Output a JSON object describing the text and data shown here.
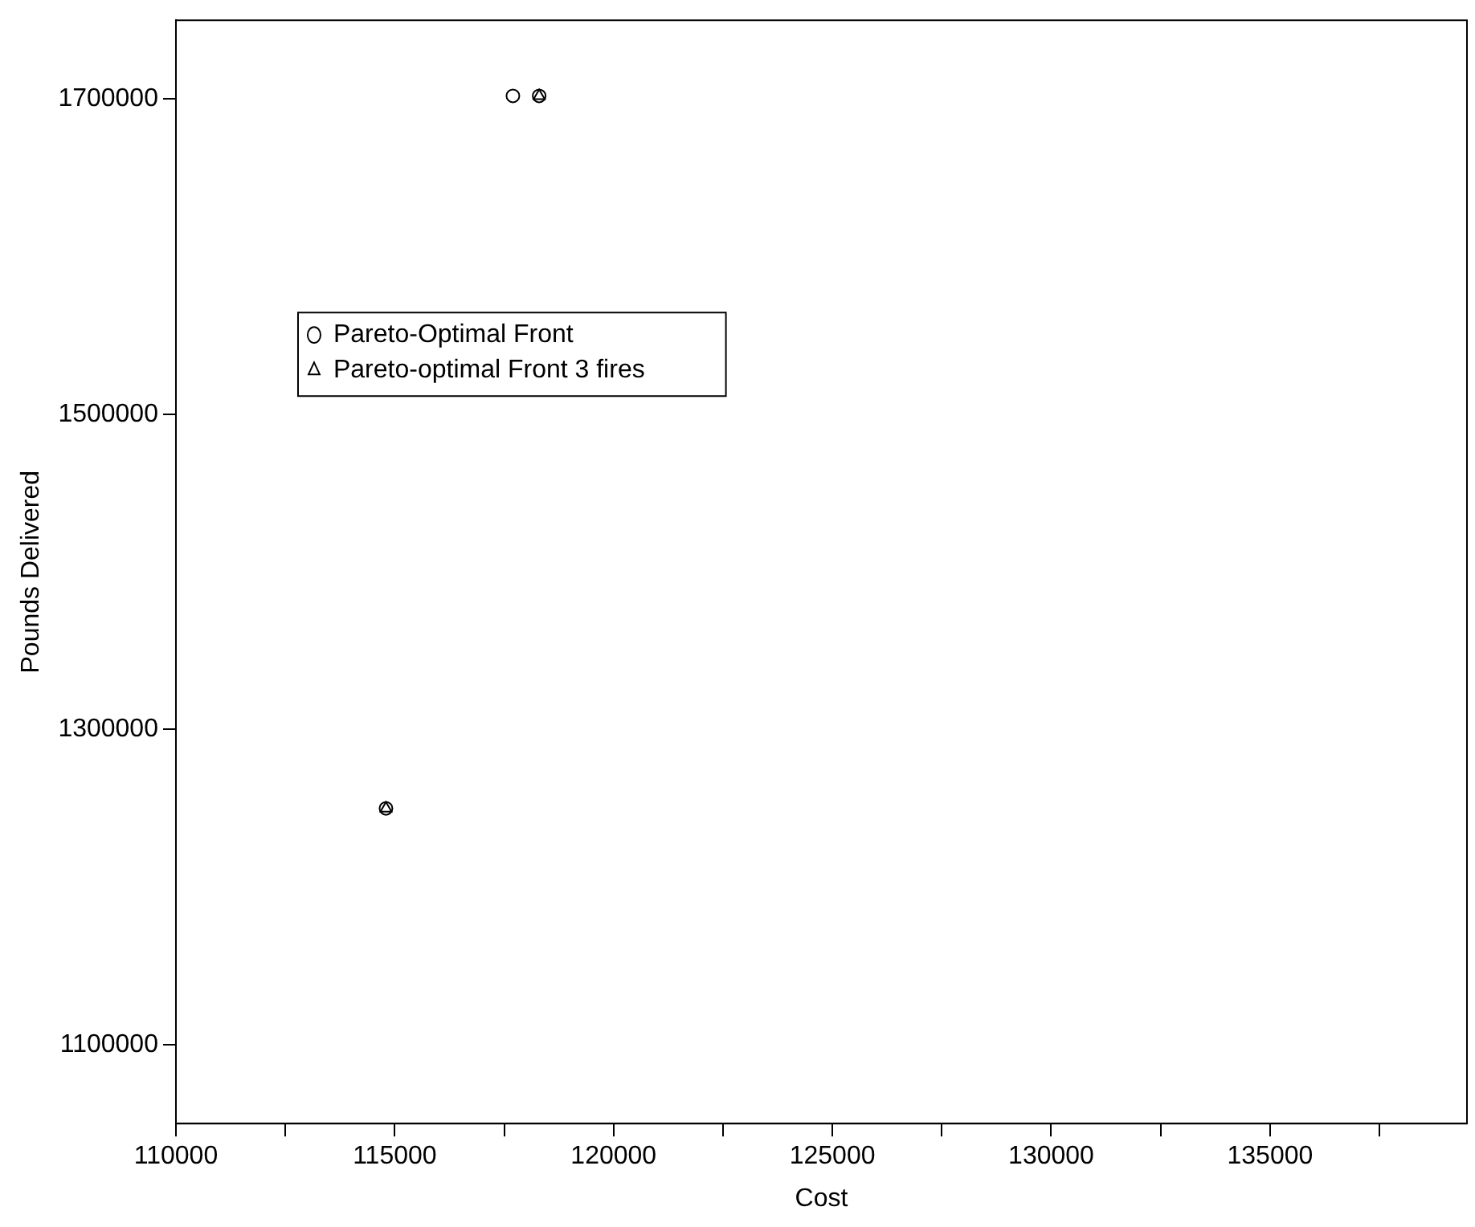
{
  "chart_data": {
    "type": "scatter",
    "xlabel": "Cost",
    "ylabel": "Pounds Delivered",
    "xlim": [
      110000,
      139500
    ],
    "ylim": [
      1050000,
      1750000
    ],
    "xticks": [
      110000,
      {
        "value": 112500,
        "label": null
      },
      115000,
      {
        "value": 117500,
        "label": null
      },
      120000,
      {
        "value": 122500,
        "label": null
      },
      125000,
      {
        "value": 127500,
        "label": null
      },
      130000,
      {
        "value": 132500,
        "label": null
      },
      135000,
      {
        "value": 137500,
        "label": null
      }
    ],
    "yticks": [
      1100000,
      1300000,
      1500000,
      1700000
    ],
    "grid": false,
    "legend": "top left",
    "series": [
      {
        "name": "Pareto-Optimal Front",
        "color": "#000000",
        "marker": "circle",
        "x": [
          117700,
          118300,
          114800
        ],
        "values": [
          1702000,
          1702000,
          1250000
        ]
      },
      {
        "name": "Pareto-optimal Front 3 fires",
        "color": "#000000",
        "marker": "triangle",
        "x": [
          118300,
          114800
        ],
        "values": [
          1702000,
          1250000
        ]
      }
    ]
  }
}
